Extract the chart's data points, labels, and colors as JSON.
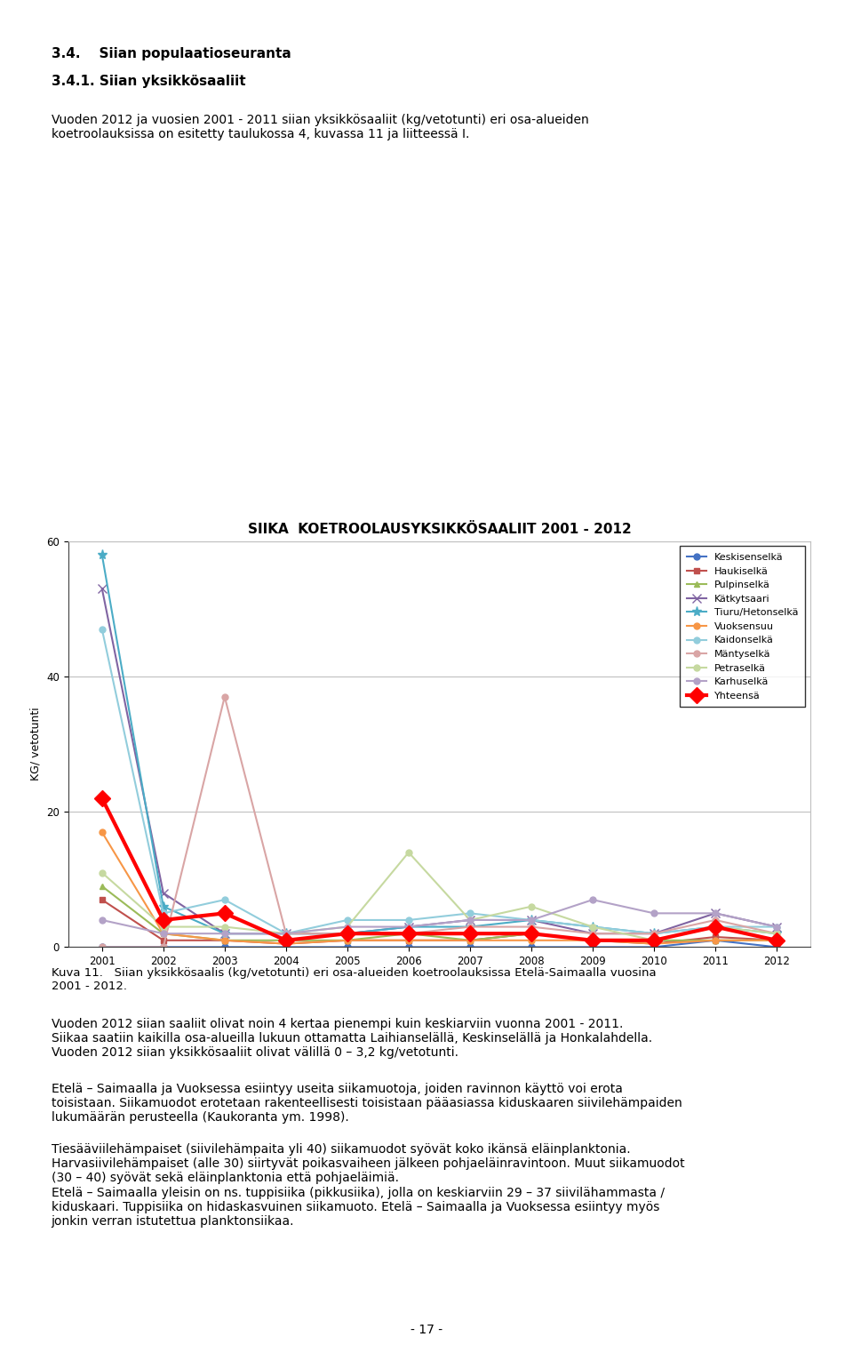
{
  "title": "SIIKA  KOETROOLAUSYKSIKKÖSAALIIT 2001 - 2012",
  "ylabel": "KG/ vetotunti",
  "years": [
    2001,
    2002,
    2003,
    2004,
    2005,
    2006,
    2007,
    2008,
    2009,
    2010,
    2011,
    2012
  ],
  "series": [
    {
      "name": "Keskisenselkä",
      "color": "#4472C4",
      "marker": "o",
      "linewidth": 1.5,
      "markersize": 5,
      "values": [
        0,
        0,
        0,
        0,
        0,
        0,
        0,
        0,
        0,
        0,
        1,
        0
      ]
    },
    {
      "name": "Haukiselkä",
      "color": "#C0504D",
      "marker": "s",
      "linewidth": 1.5,
      "markersize": 5,
      "values": [
        7,
        1,
        1,
        0.5,
        1,
        1,
        1,
        2,
        1,
        0.5,
        1.5,
        1
      ]
    },
    {
      "name": "Pulpinselkä",
      "color": "#9BBB59",
      "marker": "^",
      "linewidth": 1.5,
      "markersize": 5,
      "values": [
        9,
        2,
        1,
        1,
        1,
        2,
        1,
        2,
        1,
        1,
        1,
        1
      ]
    },
    {
      "name": "Kätkytsaari",
      "color": "#8064A2",
      "marker": "x",
      "linewidth": 1.5,
      "markersize": 7,
      "values": [
        53,
        8,
        2,
        2,
        2,
        3,
        4,
        4,
        2,
        2,
        5,
        3
      ]
    },
    {
      "name": "Tiuru/Hetonselkä",
      "color": "#4BACC6",
      "marker": "*",
      "linewidth": 1.5,
      "markersize": 8,
      "values": [
        58,
        6,
        2,
        2,
        2,
        3,
        3,
        4,
        3,
        2,
        3,
        2
      ]
    },
    {
      "name": "Vuoksensuu",
      "color": "#F79646",
      "marker": "o",
      "linewidth": 1.5,
      "markersize": 5,
      "values": [
        17,
        2,
        1,
        0.5,
        1,
        1,
        1,
        1,
        1,
        0.5,
        1,
        1
      ]
    },
    {
      "name": "Kaidonselkä",
      "color": "#92CDDC",
      "marker": "o",
      "linewidth": 1.5,
      "markersize": 5,
      "values": [
        47,
        5,
        7,
        2,
        4,
        4,
        5,
        4,
        3,
        2,
        3,
        3
      ]
    },
    {
      "name": "Mäntyselkä",
      "color": "#D9A5A5",
      "marker": "o",
      "linewidth": 1.5,
      "markersize": 5,
      "values": [
        0,
        0,
        37,
        2,
        2,
        2,
        3,
        3,
        2,
        2,
        4,
        2
      ]
    },
    {
      "name": "Petraselkä",
      "color": "#C6D9A0",
      "marker": "o",
      "linewidth": 1.5,
      "markersize": 5,
      "values": [
        11,
        3,
        3,
        2,
        3,
        14,
        4,
        6,
        3,
        1,
        3,
        2
      ]
    },
    {
      "name": "Karhuselkä",
      "color": "#B3A2C7",
      "marker": "o",
      "linewidth": 1.5,
      "markersize": 5,
      "values": [
        4,
        2,
        2,
        2,
        3,
        3,
        4,
        4,
        7,
        5,
        5,
        3
      ]
    },
    {
      "name": "Yhteensä",
      "color": "#FF0000",
      "marker": "D",
      "linewidth": 3.0,
      "markersize": 9,
      "values": [
        22,
        4,
        5,
        1,
        2,
        2,
        2,
        2,
        1,
        1,
        3,
        1
      ]
    }
  ],
  "ylim": [
    0,
    60
  ],
  "yticks": [
    0,
    20,
    40,
    60
  ],
  "figsize": [
    9.6,
    15.22
  ],
  "background_color": "#FFFFFF",
  "heading1": "3.4.    Siian populaatioseuranta",
  "heading2": "3.4.1. Siian yksikkösaaliit",
  "body1": "Vuoden 2012 ja vuosien 2001 - 2011 siian yksikkösaaliit (kg/vetotunti) eri osa-alueiden\nkoetroolauksissa on esitetty taulukossa 4, kuvassa 11 ja liitteessä I.",
  "caption": "Kuva 11.   Siian yksikkösaalis (kg/vetotunti) eri osa-alueiden koetroolauksissa Etelä-Saimaalla vuosina\n2001 - 2012.",
  "body2": "Vuoden 2012 siian saaliit olivat noin 4 kertaa pienempi kuin keskiarviin vuonna 2001 - 2011.\nSiikaa saatiin kaikilla osa-alueilla lukuun ottamatta Laihianselällä, Keskinselällä ja Honkalahdella.\nVuoden 2012 siian yksikkösaaliit olivat välillä 0 – 3,2 kg/vetotunti.",
  "body3": "Etelä – Saimaalla ja Vuoksessa esiintyy useita siikamuotoja, joiden ravinnon käyttö voi erota\ntoisistaan. Siikamuodot erotetaan rakenteellisesti toisistaan pääasiassa kiduskaaren siivilehämpaiden\nlukumäärän perusteella (Kaukoranta ym. 1998).",
  "body4": "Tiesääviilehämpaiset (siivilehämpaita yli 40) siikamuodot syövät koko ikänsä eläinplanktonia.\nHarvasiivilehämpaiset (alle 30) siirtyvät poikasvaiheen jälkeen pohjaeläinravintoon. Muut siikamuodot\n(30 – 40) syövät sekä eläinplanktonia että pohjaeläimiä.\nEtelä – Saimaalla yleisin on ns. tuppisiika (pikkusiika), jolla on keskiarviin 29 – 37 siivilähammasta /\nkiduskaari. Tuppisiika on hidaskasvuinen siikamuoto. Etelä – Saimaalla ja Vuoksessa esiintyy myös\njonkin verran istutettua planktonsiikaa.",
  "page_number": "- 17 -"
}
